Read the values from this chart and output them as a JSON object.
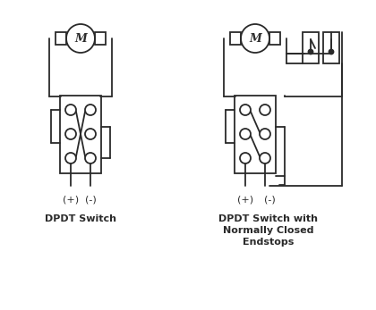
{
  "bg_color": "#ffffff",
  "line_color": "#2a2a2a",
  "title1": "DPDT Switch",
  "title2": "DPDT Switch with\nNormally Closed\nEndstops",
  "label_plus": "(+)",
  "label_minus": "(-)",
  "fig_w": 4.2,
  "fig_h": 3.47,
  "dpi": 100
}
